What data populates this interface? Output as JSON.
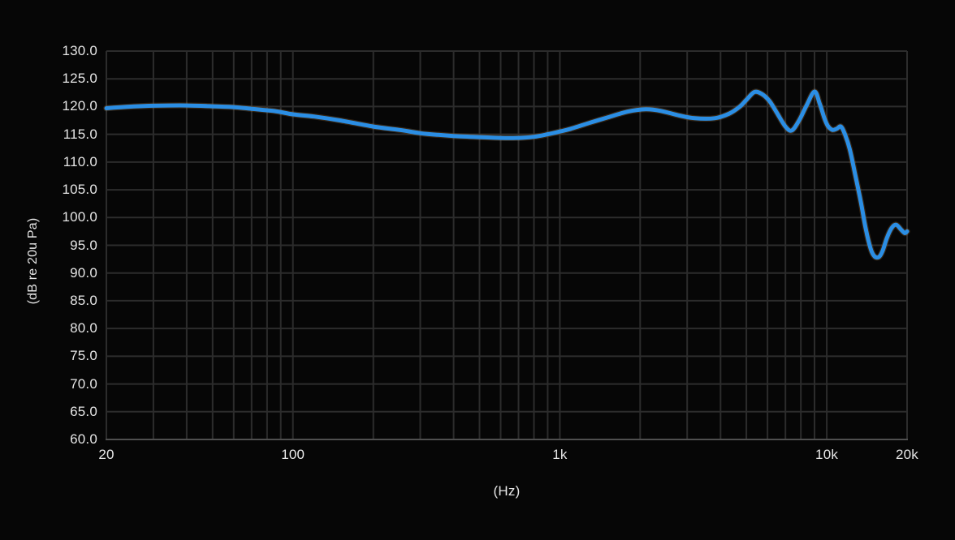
{
  "chart_data": {
    "type": "line",
    "title": "",
    "xlabel": "(Hz)",
    "ylabel": "(dB re 20u Pa)",
    "x_scale": "log",
    "xlim": [
      20,
      20000
    ],
    "ylim": [
      60,
      130
    ],
    "grid": true,
    "legend_position": "none",
    "background_color": "#060606",
    "grid_color": "#2c2c2c",
    "axis_line_color": "#4f4f4f",
    "tick_text_color": "#e6e6e6",
    "x_ticks": [
      {
        "value": 20,
        "label": "20"
      },
      {
        "value": 100,
        "label": "100"
      },
      {
        "value": 1000,
        "label": "1k"
      },
      {
        "value": 10000,
        "label": "10k"
      },
      {
        "value": 20000,
        "label": "20k"
      }
    ],
    "x_minor_gridlines": [
      30,
      40,
      50,
      60,
      70,
      80,
      90,
      200,
      300,
      400,
      500,
      600,
      700,
      800,
      900,
      2000,
      3000,
      4000,
      5000,
      6000,
      7000,
      8000,
      9000
    ],
    "y_ticks": [
      {
        "value": 130,
        "label": "130.0"
      },
      {
        "value": 125,
        "label": "125.0"
      },
      {
        "value": 120,
        "label": "120.0"
      },
      {
        "value": 115,
        "label": "115.0"
      },
      {
        "value": 110,
        "label": "110.0"
      },
      {
        "value": 105,
        "label": "105.0"
      },
      {
        "value": 100,
        "label": "100.0"
      },
      {
        "value": 95,
        "label": "95.0"
      },
      {
        "value": 90,
        "label": "90.0"
      },
      {
        "value": 85,
        "label": "85.0"
      },
      {
        "value": 80,
        "label": "80.0"
      },
      {
        "value": 75,
        "label": "75.0"
      },
      {
        "value": 70,
        "label": "70.0"
      },
      {
        "value": 65,
        "label": "65.0"
      },
      {
        "value": 60,
        "label": "60.0"
      }
    ],
    "series": [
      {
        "name": "frequency-response",
        "color": "#2b8ee4",
        "stroke_width": 5,
        "points": [
          [
            20,
            119.7
          ],
          [
            25,
            120.0
          ],
          [
            30,
            120.15
          ],
          [
            40,
            120.2
          ],
          [
            50,
            120.05
          ],
          [
            60,
            119.9
          ],
          [
            70,
            119.6
          ],
          [
            85,
            119.2
          ],
          [
            100,
            118.6
          ],
          [
            120,
            118.2
          ],
          [
            150,
            117.5
          ],
          [
            200,
            116.4
          ],
          [
            250,
            115.8
          ],
          [
            300,
            115.2
          ],
          [
            350,
            114.9
          ],
          [
            400,
            114.7
          ],
          [
            500,
            114.5
          ],
          [
            600,
            114.35
          ],
          [
            700,
            114.35
          ],
          [
            800,
            114.55
          ],
          [
            900,
            115.0
          ],
          [
            1000,
            115.5
          ],
          [
            1100,
            116.0
          ],
          [
            1300,
            117.1
          ],
          [
            1500,
            118.0
          ],
          [
            1800,
            119.1
          ],
          [
            2100,
            119.5
          ],
          [
            2400,
            119.2
          ],
          [
            2800,
            118.4
          ],
          [
            3200,
            117.9
          ],
          [
            3800,
            117.9
          ],
          [
            4300,
            118.7
          ],
          [
            4700,
            119.9
          ],
          [
            5000,
            121.2
          ],
          [
            5350,
            122.6
          ],
          [
            5700,
            122.3
          ],
          [
            6100,
            121.0
          ],
          [
            6500,
            118.9
          ],
          [
            7000,
            116.4
          ],
          [
            7400,
            115.7
          ],
          [
            7900,
            117.6
          ],
          [
            8400,
            120.2
          ],
          [
            9000,
            122.7
          ],
          [
            9400,
            120.6
          ],
          [
            9800,
            117.9
          ],
          [
            10100,
            116.5
          ],
          [
            10500,
            115.8
          ],
          [
            10900,
            116.0
          ],
          [
            11300,
            116.4
          ],
          [
            11700,
            115.0
          ],
          [
            12200,
            112.3
          ],
          [
            12800,
            107.6
          ],
          [
            13400,
            103.0
          ],
          [
            14000,
            98.0
          ],
          [
            14600,
            94.4
          ],
          [
            15100,
            93.0
          ],
          [
            15700,
            92.9
          ],
          [
            16200,
            94.0
          ],
          [
            16800,
            96.3
          ],
          [
            17500,
            98.1
          ],
          [
            18200,
            98.7
          ],
          [
            19000,
            97.8
          ],
          [
            19600,
            97.2
          ],
          [
            20000,
            97.5
          ]
        ]
      }
    ]
  }
}
